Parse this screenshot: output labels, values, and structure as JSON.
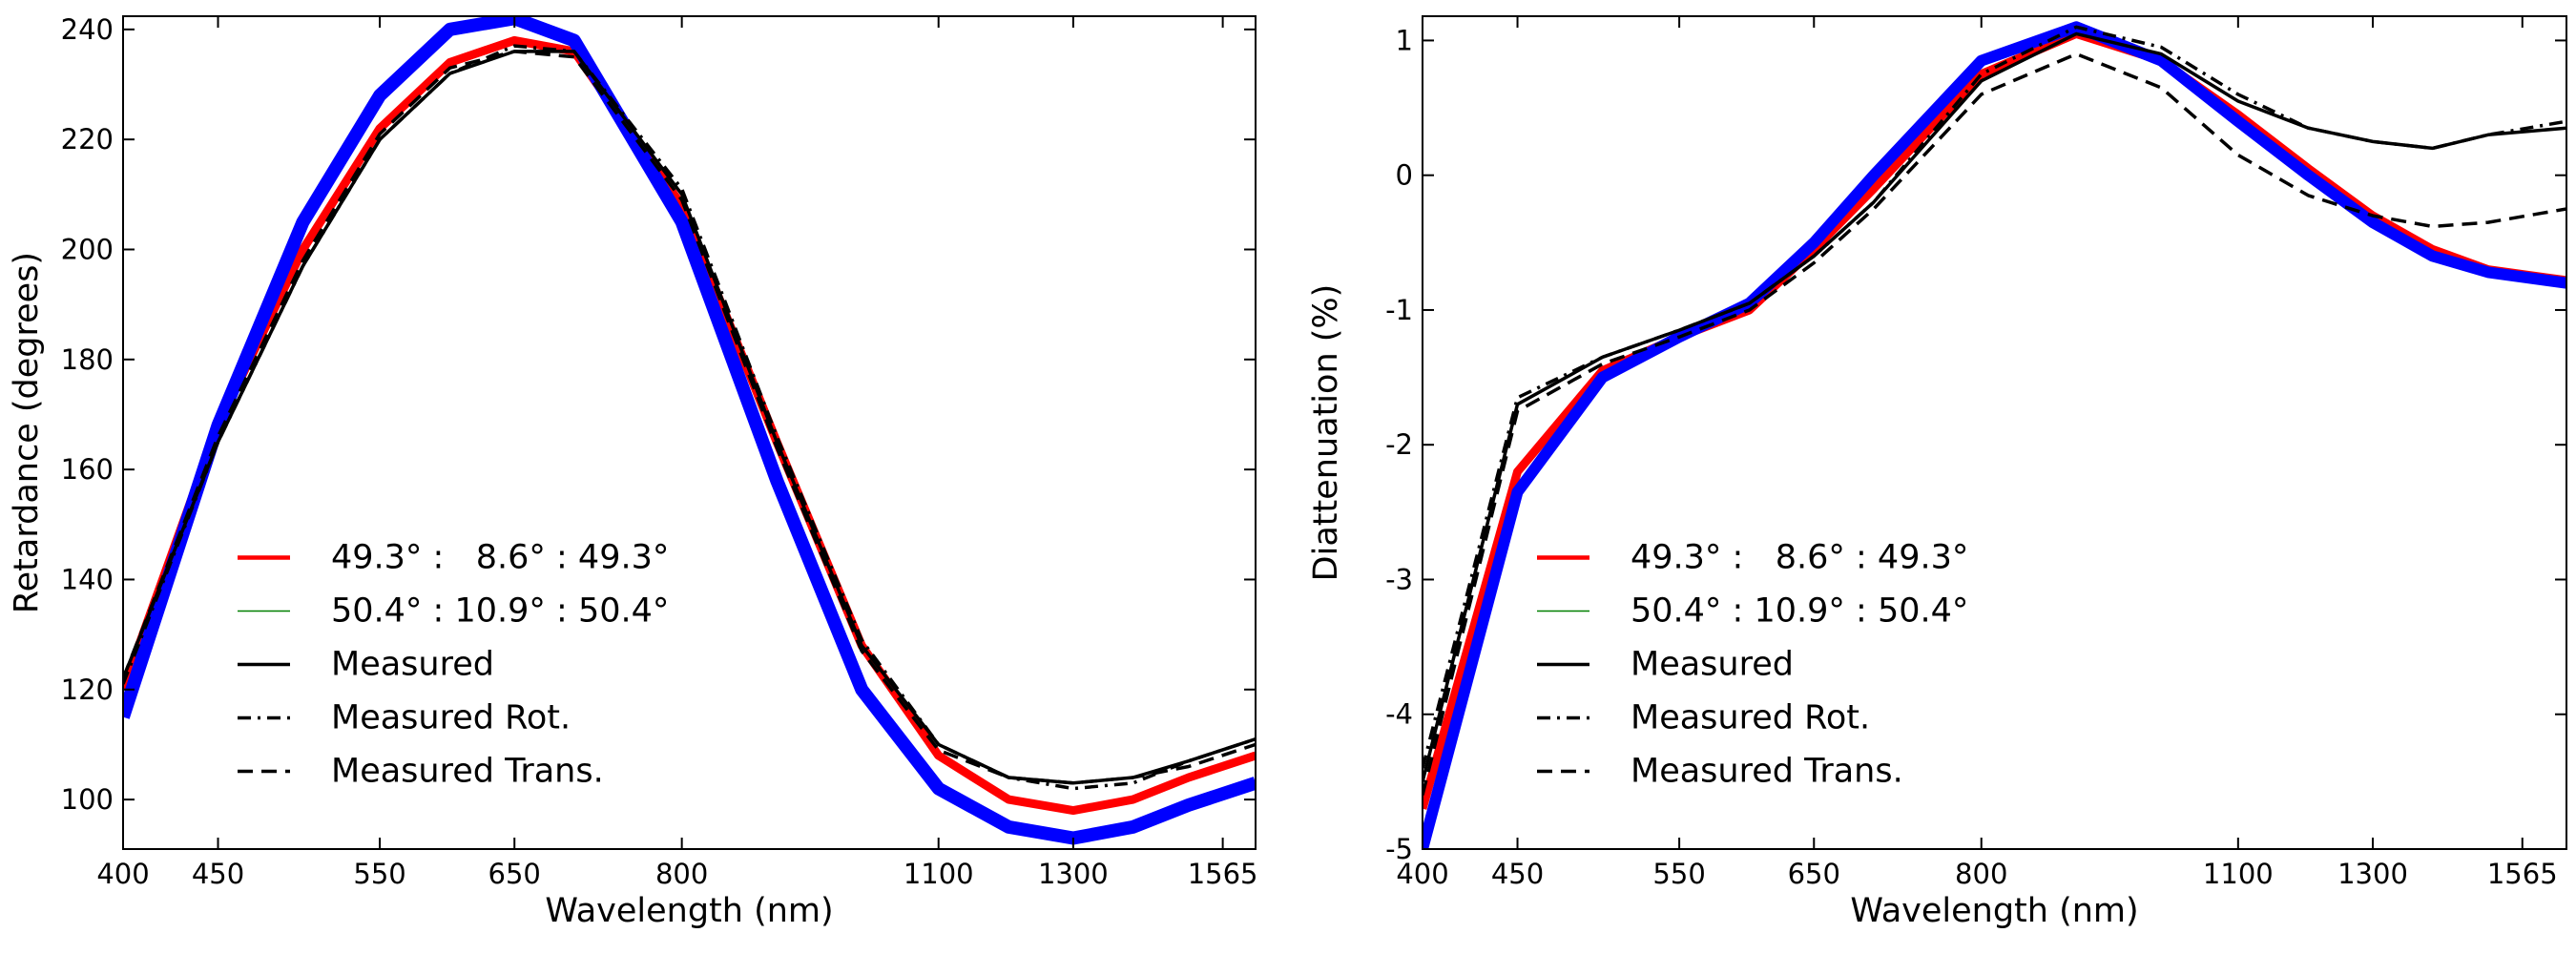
{
  "chart_data": [
    {
      "type": "line",
      "xscale": "log",
      "ylabel": "Retardance  (degrees)",
      "xlabel": "Wavelength (nm)",
      "x": [
        400,
        450,
        500,
        550,
        600,
        650,
        700,
        800,
        900,
        1000,
        1100,
        1200,
        1300,
        1400,
        1500,
        1630
      ],
      "xlim": [
        400,
        1630
      ],
      "xticks": [
        400,
        450,
        550,
        650,
        800,
        1100,
        1300,
        1565
      ],
      "ylim": [
        91,
        242.4
      ],
      "yticks": [
        100,
        120,
        140,
        160,
        180,
        200,
        220,
        240
      ],
      "series": [
        {
          "name": "49.3° :   8.6° : 49.3°",
          "color": "#ff0000",
          "linestyle": "-",
          "linewidth": 9,
          "values": [
            120,
            168,
            200,
            222,
            234,
            238,
            236,
            208,
            165,
            128,
            108,
            100,
            98,
            100,
            104,
            108
          ]
        },
        {
          "name": "50.4° : 10.9° : 50.4°",
          "color": "#008000",
          "linestyle": "-",
          "linewidth": 1.5,
          "values": [
            115,
            168,
            205,
            228,
            240,
            242,
            238,
            205,
            158,
            120,
            102,
            95,
            93,
            95,
            99,
            103
          ]
        },
        {
          "color": "#0000ff",
          "linestyle": "-",
          "linewidth": 14,
          "values": [
            115,
            168,
            205,
            228,
            240,
            242,
            238,
            205,
            158,
            120,
            102,
            95,
            93,
            95,
            99,
            103
          ]
        },
        {
          "name": "Measured",
          "color": "#000000",
          "linestyle": "-",
          "linewidth": 3.5,
          "values": [
            122,
            165,
            197,
            220,
            232,
            236,
            236,
            210,
            165,
            128,
            110,
            104,
            103,
            104,
            107,
            111
          ]
        },
        {
          "name": "Measured Rot.",
          "color": "#000000",
          "linestyle": "-.",
          "linewidth": 3.5,
          "values": [
            121,
            165,
            197,
            220,
            232,
            237,
            236,
            211,
            166,
            129,
            110,
            104,
            102,
            103,
            107,
            111
          ]
        },
        {
          "name": "Measured Trans.",
          "color": "#000000",
          "linestyle": "--",
          "linewidth": 3.5,
          "values": [
            122,
            166,
            198,
            221,
            233,
            236,
            235,
            209,
            164,
            127,
            109,
            104,
            103,
            104,
            106,
            110
          ]
        }
      ]
    },
    {
      "type": "line",
      "xscale": "log",
      "ylabel": "Diattenuation  (%)",
      "xlabel": "Wavelength (nm)",
      "x": [
        400,
        450,
        500,
        550,
        600,
        650,
        700,
        800,
        900,
        1000,
        1100,
        1200,
        1300,
        1400,
        1500,
        1653
      ],
      "xlim": [
        400,
        1653
      ],
      "xticks": [
        400,
        450,
        550,
        650,
        800,
        1100,
        1300,
        1565
      ],
      "ylim": [
        -5,
        1.18
      ],
      "yticks": [
        -5,
        -4,
        -3,
        -2,
        -1,
        0,
        1
      ],
      "series": [
        {
          "name": "49.3° :   8.6° : 49.3°",
          "color": "#ff0000",
          "linestyle": "-",
          "linewidth": 9,
          "values": [
            -4.7,
            -2.2,
            -1.45,
            -1.2,
            -1.0,
            -0.55,
            -0.1,
            0.75,
            1.05,
            0.85,
            0.45,
            0.05,
            -0.3,
            -0.55,
            -0.7,
            -0.78
          ]
        },
        {
          "name": "50.4° : 10.9° : 50.4°",
          "color": "#008000",
          "linestyle": "-",
          "linewidth": 1.5,
          "values": [
            -5,
            -2.35,
            -1.5,
            -1.2,
            -0.95,
            -0.5,
            0,
            0.85,
            1.1,
            0.85,
            0.4,
            0,
            -0.35,
            -0.6,
            -0.72,
            -0.8
          ]
        },
        {
          "color": "#0000ff",
          "linestyle": "-",
          "linewidth": 12,
          "values": [
            -5,
            -2.35,
            -1.5,
            -1.2,
            -0.95,
            -0.5,
            0,
            0.85,
            1.1,
            0.85,
            0.4,
            0,
            -0.35,
            -0.6,
            -0.72,
            -0.8
          ]
        },
        {
          "name": "Measured",
          "color": "#000000",
          "linestyle": "-",
          "linewidth": 3.5,
          "values": [
            -4.5,
            -1.7,
            -1.35,
            -1.15,
            -0.95,
            -0.6,
            -0.2,
            0.7,
            1.05,
            0.9,
            0.55,
            0.35,
            0.25,
            0.2,
            0.3,
            0.35
          ]
        },
        {
          "name": "Measured Rot.",
          "color": "#000000",
          "linestyle": "-.",
          "linewidth": 3.5,
          "values": [
            -4.4,
            -1.65,
            -1.35,
            -1.15,
            -0.95,
            -0.6,
            -0.2,
            0.75,
            1.1,
            0.95,
            0.6,
            0.35,
            0.25,
            0.2,
            0.3,
            0.4
          ]
        },
        {
          "name": "Measured Trans.",
          "color": "#000000",
          "linestyle": "--",
          "linewidth": 3.5,
          "values": [
            -4.6,
            -1.75,
            -1.4,
            -1.2,
            -1.0,
            -0.65,
            -0.25,
            0.6,
            0.9,
            0.65,
            0.15,
            -0.15,
            -0.3,
            -0.38,
            -0.35,
            -0.25
          ]
        }
      ]
    }
  ]
}
